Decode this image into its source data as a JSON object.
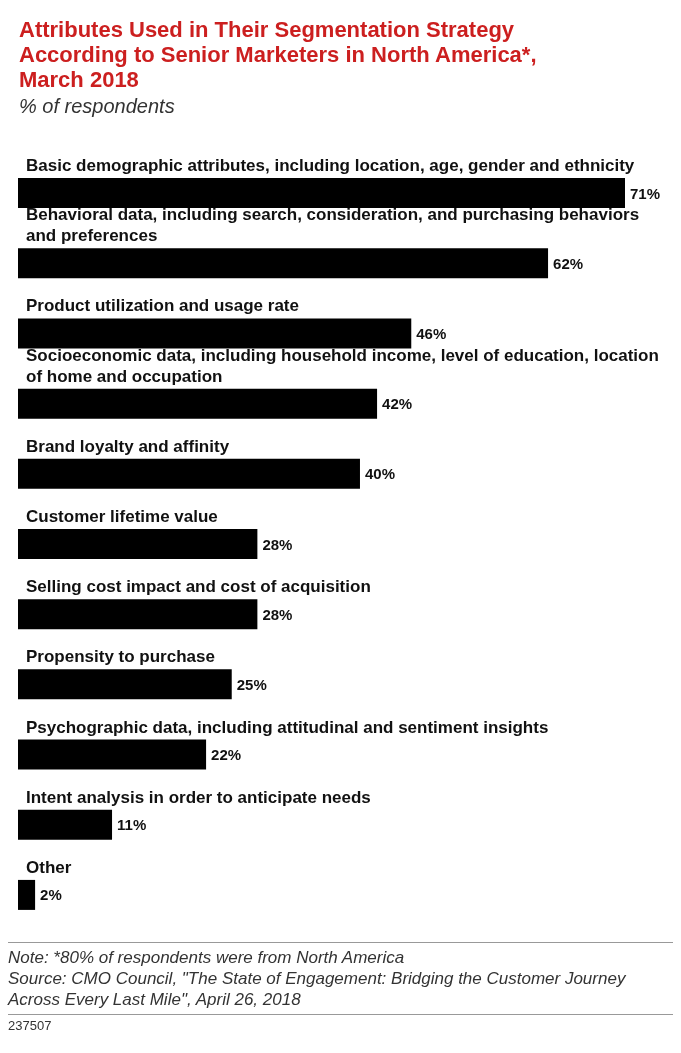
{
  "chart_data": {
    "type": "bar",
    "orientation": "horizontal",
    "title": "Attributes Used in Their Segmentation Strategy According to Senior Marketers in North America*, March 2018",
    "subtitle": "% of respondents",
    "categories": [
      "Basic demographic attributes, including location, age, gender and ethnicity",
      "Behavioral data, including search, consideration, and purchasing behaviors and preferences",
      "Product utilization and usage rate",
      "Socioeconomic data, including household income, level of education, location of home and occupation",
      "Brand loyalty and affinity",
      "Customer lifetime value",
      "Selling cost impact and cost of acquisition",
      "Propensity to purchase",
      "Psychographic data, including attitudinal and sentiment insights",
      "Intent analysis in order to anticipate needs",
      "Other"
    ],
    "values": [
      71,
      62,
      46,
      42,
      40,
      28,
      28,
      25,
      22,
      11,
      2
    ],
    "value_labels": [
      "71%",
      "62%",
      "46%",
      "42%",
      "40%",
      "28%",
      "28%",
      "25%",
      "22%",
      "11%",
      "2%"
    ],
    "color": "#000000",
    "annotations": [
      "Note: *80% of respondents were from North America",
      "Source: CMO Council, \"The State of Engagement: Bridging the Customer Journey Across Every Last Mile\", April 26, 2018",
      "237507"
    ]
  }
}
